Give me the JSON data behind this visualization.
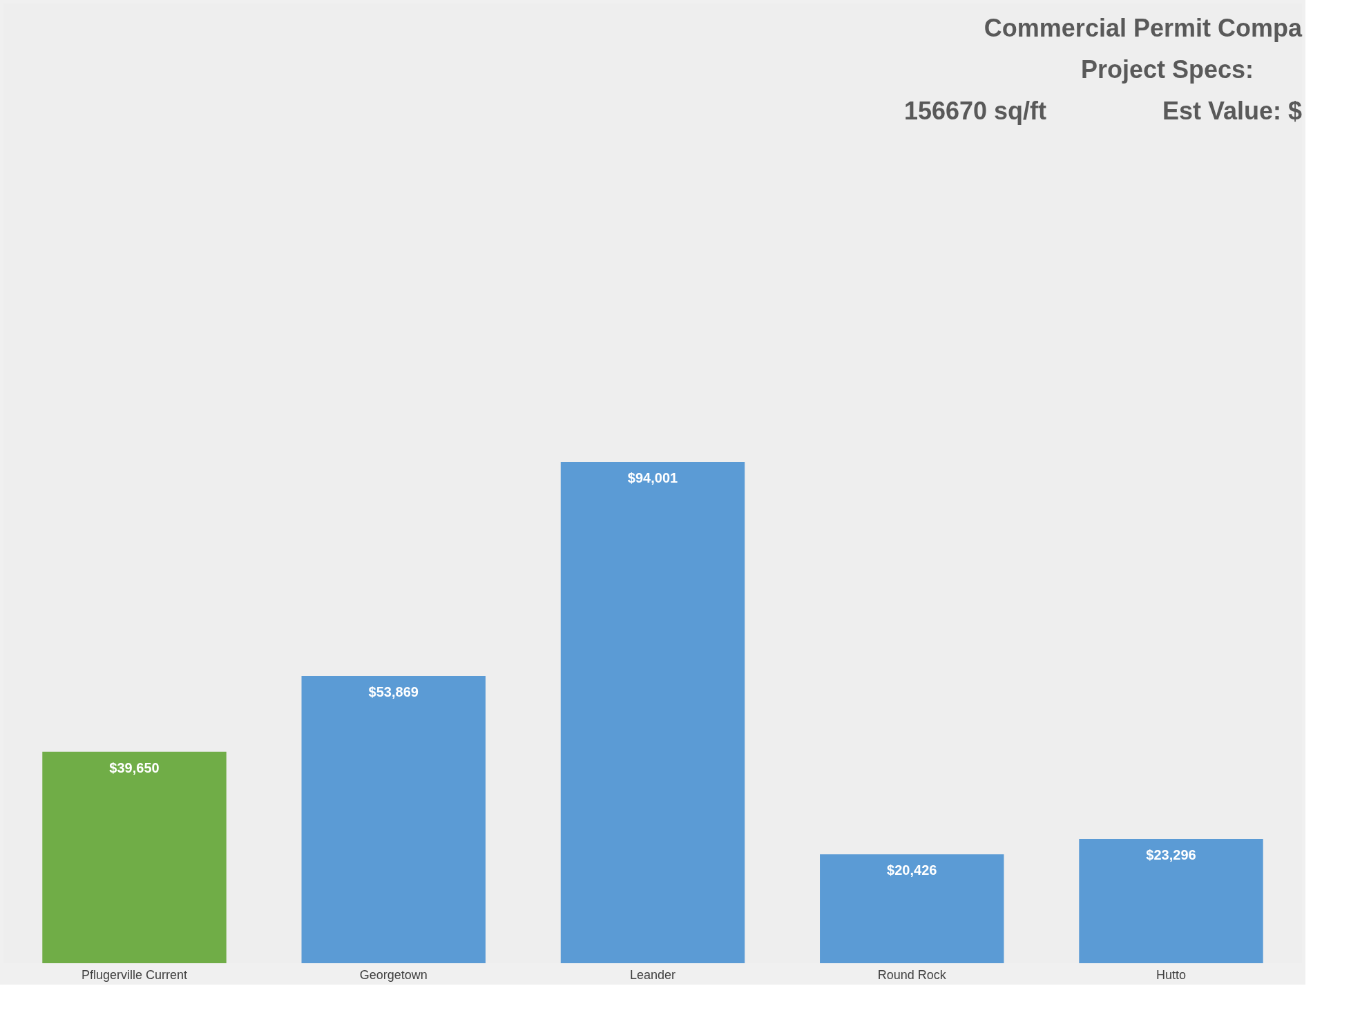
{
  "chart_data": {
    "type": "bar",
    "title": "Commercial Permit Compa",
    "subtitle": "Project Specs:",
    "annotations": [
      "156670 sq/ft",
      "Est Value: $"
    ],
    "categories": [
      "Pflugerville Current",
      "Georgetown",
      "Leander",
      "Round Rock",
      "Hutto"
    ],
    "values": [
      39650,
      53869,
      94001,
      20426,
      23296
    ],
    "colors": [
      "#70ad47",
      "#5b9bd5",
      "#5b9bd5",
      "#5b9bd5",
      "#5b9bd5"
    ],
    "value_labels": [
      "$39,650",
      "$53,869",
      "$94,001",
      "$20,426",
      "$23,296"
    ],
    "ylim": [
      0,
      180000
    ],
    "tick_labels": "x",
    "grid": false
  }
}
